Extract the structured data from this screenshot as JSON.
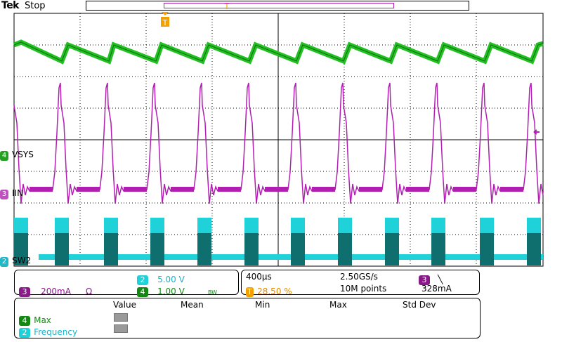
{
  "header": {
    "brand": "Tek",
    "run_state": "Stop"
  },
  "colors": {
    "ch1_magenta": "#b11fb1",
    "ch2_cyan": "#1fd1d8",
    "ch4_green": "#23c023",
    "trigger_orange": "#f2a000",
    "grid": "#000000"
  },
  "markers": {
    "trigger_marker": "T",
    "channels": [
      {
        "number": "4",
        "label": "VSYS",
        "color": "#23a023"
      },
      {
        "number": "3",
        "label": "IIN",
        "color": "#c04fc0"
      },
      {
        "number": "2",
        "label": "SW2",
        "color": "#1fb8c8"
      }
    ]
  },
  "channel_panel": {
    "ch3": {
      "number": "3",
      "scale": "200mA",
      "coupling": "Ω"
    },
    "ch2": {
      "number": "2",
      "scale": "5.00 V"
    },
    "ch4": {
      "number": "4",
      "scale": "1.00 V",
      "bw": "BW"
    }
  },
  "timebase_panel": {
    "horizontal_scale": "400µs",
    "sample_rate": "2.50GS/s",
    "trigger_position_icon": "T",
    "trigger_position": "28.50 %",
    "record_length": "10M points",
    "trigger_channel": "3",
    "trigger_slope_icon": "falling-edge-icon",
    "trigger_level": "328mA"
  },
  "measurements": {
    "headers": [
      "Value",
      "Mean",
      "Min",
      "Max",
      "Std Dev"
    ],
    "rows": [
      {
        "channel": "4",
        "name": "Max",
        "color": "#128a12"
      },
      {
        "channel": "2",
        "name": "Frequency",
        "color": "#16b6c9"
      }
    ]
  }
}
